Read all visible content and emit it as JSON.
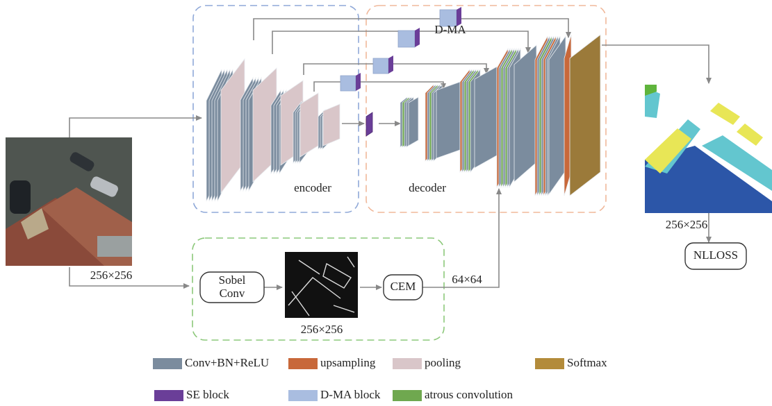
{
  "encoder": "encoder",
  "decoder": "decoder",
  "dma_label": "D-MA",
  "input_size": "256×256",
  "edge_size": "256×256",
  "output_size": "256×256",
  "sobel": [
    "Sobel",
    "Conv"
  ],
  "cem": "CEM",
  "cem_size": "64×64",
  "loss": "NLLOSS",
  "legend": [
    {
      "label": "Conv+BN+ReLU",
      "color": "#7b8c9e"
    },
    {
      "label": "upsampling",
      "color": "#c8683a"
    },
    {
      "label": "pooling",
      "color": "#d9c6c9"
    },
    {
      "label": "Softmax",
      "color": "#b38b3a"
    },
    {
      "label": "SE block",
      "color": "#6a3e98"
    },
    {
      "label": "D-MA block",
      "color": "#a9bde0"
    },
    {
      "label": "atrous convolution",
      "color": "#6fa84f"
    }
  ]
}
